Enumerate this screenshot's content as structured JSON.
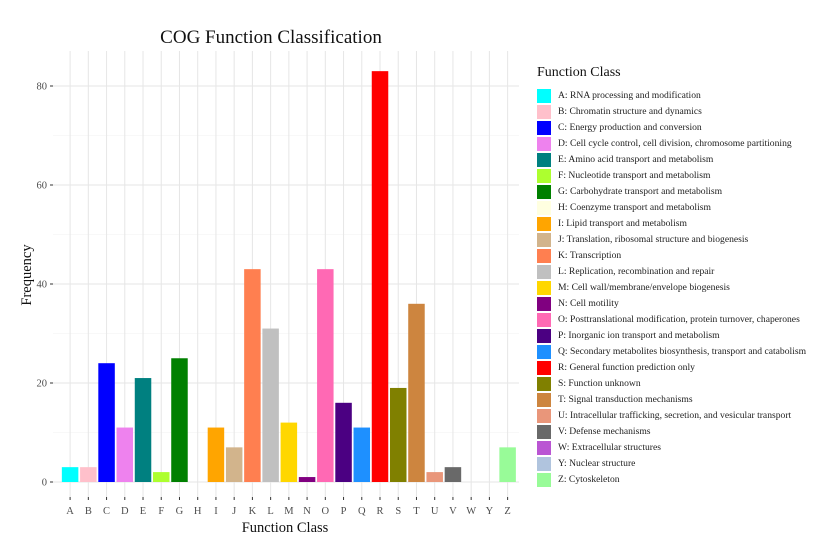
{
  "chart_data": {
    "type": "bar",
    "title": "COG Function Classification",
    "xlabel": "Function Class",
    "ylabel": "Frequency",
    "ylim": [
      0,
      87
    ],
    "yticks": [
      0,
      20,
      40,
      60,
      80
    ],
    "grid": true,
    "legend_position": "right",
    "legend_title": "Function Class",
    "categories": [
      "A",
      "B",
      "C",
      "D",
      "E",
      "F",
      "G",
      "H",
      "I",
      "J",
      "K",
      "L",
      "M",
      "N",
      "O",
      "P",
      "Q",
      "R",
      "S",
      "T",
      "U",
      "V",
      "W",
      "Y",
      "Z"
    ],
    "values": [
      3,
      3,
      24,
      11,
      21,
      2,
      25,
      0,
      11,
      7,
      43,
      31,
      12,
      1,
      43,
      16,
      11,
      83,
      19,
      36,
      2,
      3,
      0,
      0,
      7
    ],
    "colors": [
      "#00FFFF",
      "#FFC0CB",
      "#0000FF",
      "#EE82EE",
      "#008080",
      "#ADFF2F",
      "#008000",
      "#FFFFE0",
      "#FFA500",
      "#D2B48C",
      "#FF7F50",
      "#C0C0C0",
      "#FFD700",
      "#800080",
      "#FF69B4",
      "#4B0082",
      "#1E90FF",
      "#FF0000",
      "#808000",
      "#CD853F",
      "#E9967A",
      "#696969",
      "#BA55D3",
      "#B0C4DE",
      "#98FB98"
    ],
    "legend": [
      "A: RNA processing and modification",
      "B: Chromatin structure and dynamics",
      "C: Energy production and conversion",
      "D: Cell cycle control, cell division, chromosome partitioning",
      "E: Amino acid transport and metabolism",
      "F: Nucleotide transport and metabolism",
      "G: Carbohydrate transport and metabolism",
      "H: Coenzyme transport and metabolism",
      "I: Lipid transport and metabolism",
      "J: Translation, ribosomal structure and biogenesis",
      "K: Transcription",
      "L: Replication, recombination and repair",
      "M: Cell wall/membrane/envelope biogenesis",
      "N: Cell motility",
      "O: Posttranslational modification, protein turnover, chaperones",
      "P: Inorganic ion transport and metabolism",
      "Q: Secondary metabolites biosynthesis, transport and catabolism",
      "R: General function prediction only",
      "S: Function unknown",
      "T: Signal transduction mechanisms",
      "U: Intracellular trafficking, secretion, and vesicular transport",
      "V: Defense mechanisms",
      "W: Extracellular structures",
      "Y: Nuclear structure",
      "Z: Cytoskeleton"
    ]
  }
}
